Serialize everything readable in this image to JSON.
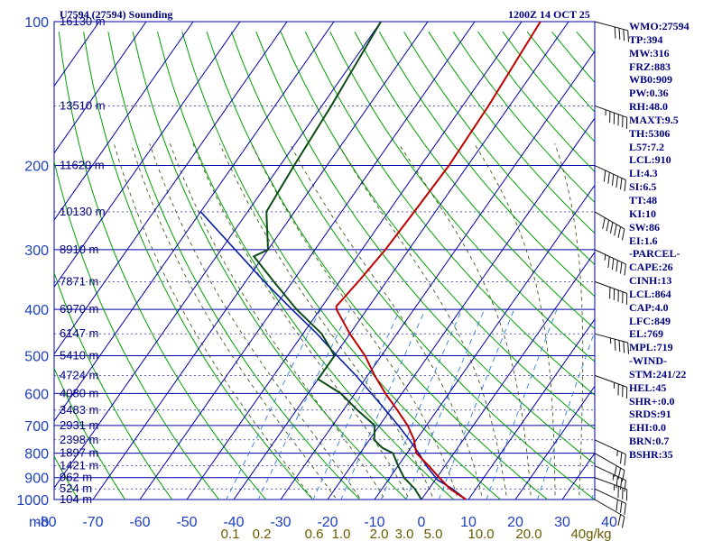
{
  "header": {
    "station": "U7594 (27594) Sounding",
    "time": "1200Z 14 OCT 25"
  },
  "indices": [
    "WMO:27594",
    "TP:394",
    "MW:316",
    "FRZ:883",
    "WB0:909",
    "PW:0.36",
    "RH:48.0",
    "MAXT:9.5",
    "TH:5306",
    "L57:7.2",
    "LCL:910",
    "LI:4.3",
    "SI:6.5",
    "TT:48",
    "KI:10",
    "SW:86",
    "EI:1.6",
    "-PARCEL-",
    "CAPE:26",
    "CINH:13",
    "LCL:864",
    "CAP:4.0",
    "LFC:849",
    "EL:769",
    "MPL:719",
    "-WIND-",
    "STM:241/22",
    "HEL:45",
    "SHR+:0.0",
    "SRDS:91",
    "EHI:0.0",
    "BRN:0.7",
    "BSHR:35"
  ],
  "chart_data": {
    "type": "skew-t",
    "y_axis_unit_label": "mb",
    "pressure_ticks": [
      100,
      200,
      300,
      400,
      500,
      600,
      700,
      800,
      900,
      1000
    ],
    "pressure_tick_labels": [
      "100",
      "200",
      "300",
      "400",
      "500",
      "600",
      "700",
      "800",
      "900",
      "1000"
    ],
    "temperature_ticks": [
      -80,
      -70,
      -60,
      -50,
      -40,
      -30,
      -20,
      -10,
      0,
      10,
      20,
      30,
      40
    ],
    "temperature_tick_labels": [
      "-80",
      "-70",
      "-60",
      "-50",
      "-40",
      "-30",
      "-20",
      "-10",
      "0",
      "10",
      "20",
      "30",
      "40"
    ],
    "mixing_ratio_labels": [
      "0.1",
      "0.2",
      "0.6",
      "1.0",
      "2.0",
      "3.0",
      "5.0",
      "10.0",
      "20.0",
      "40g/kg"
    ],
    "pressure_range_mb": [
      100,
      1000
    ],
    "height_labels": [
      {
        "p": 100,
        "text": "16130 m"
      },
      {
        "p": 150,
        "text": "13510 m"
      },
      {
        "p": 200,
        "text": "11620 m"
      },
      {
        "p": 250,
        "text": "10130 m"
      },
      {
        "p": 300,
        "text": "8910 m"
      },
      {
        "p": 350,
        "text": "7871 m"
      },
      {
        "p": 400,
        "text": "6970 m"
      },
      {
        "p": 450,
        "text": "6147 m"
      },
      {
        "p": 500,
        "text": "5410 m"
      },
      {
        "p": 550,
        "text": "4724 m"
      },
      {
        "p": 600,
        "text": "4080 m"
      },
      {
        "p": 650,
        "text": "3483 m"
      },
      {
        "p": 700,
        "text": "2931 m"
      },
      {
        "p": 750,
        "text": "2398 m"
      },
      {
        "p": 800,
        "text": "1897 m"
      },
      {
        "p": 850,
        "text": "1421 m"
      },
      {
        "p": 900,
        "text": "962 m"
      },
      {
        "p": 950,
        "text": "524 m"
      },
      {
        "p": 1000,
        "text": "104 m"
      }
    ],
    "temperature_profile": [
      {
        "p": 1000,
        "t": 9.5
      },
      {
        "p": 950,
        "t": 4.5
      },
      {
        "p": 900,
        "t": 0.5
      },
      {
        "p": 850,
        "t": -3.5
      },
      {
        "p": 800,
        "t": -8
      },
      {
        "p": 780,
        "t": -9
      },
      {
        "p": 750,
        "t": -10.5
      },
      {
        "p": 700,
        "t": -14
      },
      {
        "p": 650,
        "t": -18.5
      },
      {
        "p": 600,
        "t": -23.5
      },
      {
        "p": 550,
        "t": -28.5
      },
      {
        "p": 500,
        "t": -33.5
      },
      {
        "p": 450,
        "t": -40
      },
      {
        "p": 400,
        "t": -46.5
      },
      {
        "p": 394,
        "t": -47
      },
      {
        "p": 350,
        "t": -46
      },
      {
        "p": 300,
        "t": -45
      },
      {
        "p": 250,
        "t": -44.5
      },
      {
        "p": 200,
        "t": -44
      },
      {
        "p": 150,
        "t": -44.5
      },
      {
        "p": 100,
        "t": -46
      }
    ],
    "dewpoint_profile": [
      {
        "p": 1000,
        "t": 0
      },
      {
        "p": 950,
        "t": -3
      },
      {
        "p": 900,
        "t": -7
      },
      {
        "p": 850,
        "t": -10
      },
      {
        "p": 800,
        "t": -13
      },
      {
        "p": 780,
        "t": -16
      },
      {
        "p": 750,
        "t": -19
      },
      {
        "p": 700,
        "t": -21
      },
      {
        "p": 650,
        "t": -27
      },
      {
        "p": 600,
        "t": -33
      },
      {
        "p": 560,
        "t": -40
      },
      {
        "p": 540,
        "t": -40
      },
      {
        "p": 500,
        "t": -40
      },
      {
        "p": 450,
        "t": -46
      },
      {
        "p": 400,
        "t": -55
      },
      {
        "p": 350,
        "t": -64
      },
      {
        "p": 310,
        "t": -72
      },
      {
        "p": 300,
        "t": -70
      },
      {
        "p": 250,
        "t": -76
      },
      {
        "p": 200,
        "t": -77
      },
      {
        "p": 150,
        "t": -78
      },
      {
        "p": 100,
        "t": -80
      }
    ],
    "parcel_path": [
      {
        "p": 1000,
        "t": 9.5
      },
      {
        "p": 950,
        "t": 5
      },
      {
        "p": 910,
        "t": 0.5
      },
      {
        "p": 850,
        "t": -4
      },
      {
        "p": 800,
        "t": -7.5
      },
      {
        "p": 750,
        "t": -11.5
      },
      {
        "p": 700,
        "t": -16
      },
      {
        "p": 650,
        "t": -21
      },
      {
        "p": 600,
        "t": -26.5
      },
      {
        "p": 550,
        "t": -32.5
      },
      {
        "p": 500,
        "t": -39.5
      },
      {
        "p": 450,
        "t": -47
      },
      {
        "p": 400,
        "t": -56
      },
      {
        "p": 350,
        "t": -66
      },
      {
        "p": 300,
        "t": -77
      },
      {
        "p": 250,
        "t": -90
      }
    ],
    "winds": [
      {
        "p": 1000,
        "dir": 240,
        "spd": 20
      },
      {
        "p": 950,
        "dir": 245,
        "spd": 30
      },
      {
        "p": 900,
        "dir": 250,
        "spd": 35
      },
      {
        "p": 850,
        "dir": 245,
        "spd": 35
      },
      {
        "p": 800,
        "dir": 240,
        "spd": 30
      },
      {
        "p": 750,
        "dir": 245,
        "spd": 25
      },
      {
        "p": 550,
        "dir": 250,
        "spd": 35
      },
      {
        "p": 450,
        "dir": 255,
        "spd": 45
      },
      {
        "p": 350,
        "dir": 250,
        "spd": 50
      },
      {
        "p": 300,
        "dir": 245,
        "spd": 55
      },
      {
        "p": 250,
        "dir": 240,
        "spd": 60
      },
      {
        "p": 200,
        "dir": 245,
        "spd": 60
      },
      {
        "p": 150,
        "dir": 250,
        "spd": 55
      },
      {
        "p": 100,
        "dir": 255,
        "spd": 40
      }
    ],
    "colors": {
      "background": "#ffffff",
      "grid": "#0000a8",
      "dry_adiabat": "#00a000",
      "moist_adiabat": "#3d5a1e",
      "mixing_ratio": "#2f7fd6",
      "temperature": "#c00000",
      "dewpoint": "#0c4a16",
      "parcel": "#0a1fa8",
      "axis_labels": "#00007f",
      "temp_labels": "#1f3fbf",
      "mixing_labels": "#6b5a00"
    }
  }
}
